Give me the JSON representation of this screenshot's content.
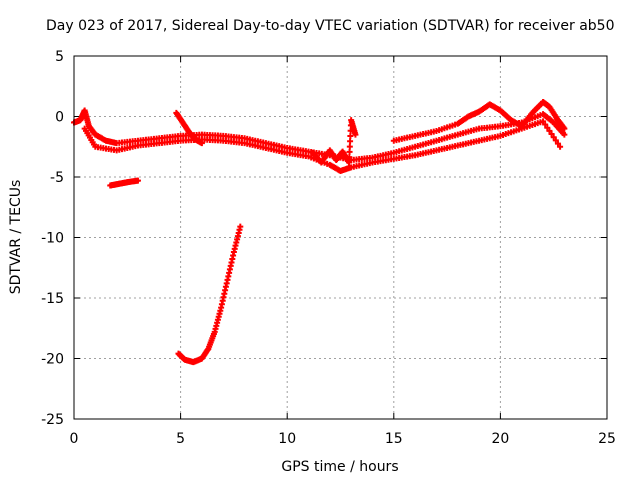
{
  "chart_data": {
    "type": "scatter",
    "title": "Day 023 of 2017, Sidereal Day-to-day VTEC variation (SDTVAR) for receiver ab50",
    "xlabel": "GPS time / hours",
    "ylabel": "SDTVAR / TECUs",
    "xlim": [
      0,
      25
    ],
    "ylim": [
      -25,
      5
    ],
    "xticks": [
      0,
      5,
      10,
      15,
      20,
      25
    ],
    "yticks": [
      5,
      0,
      -5,
      -10,
      -15,
      -20,
      -25
    ],
    "xtick_labels": [
      "0",
      "5",
      "10",
      "15",
      "20",
      "25"
    ],
    "ytick_labels": [
      "5",
      "0",
      "-5",
      "-10",
      "-15",
      "-20",
      "-25"
    ],
    "grid": true,
    "marker": "+",
    "series_color": "#ff0000",
    "series": [
      {
        "name": "upper-band-main-a",
        "points": [
          [
            0,
            -0.5
          ],
          [
            0.3,
            -0.3
          ],
          [
            0.5,
            0.5
          ],
          [
            0.7,
            -0.8
          ],
          [
            1.0,
            -1.5
          ],
          [
            1.5,
            -2.0
          ],
          [
            2.0,
            -2.2
          ],
          [
            3.0,
            -2.0
          ],
          [
            4.0,
            -1.8
          ],
          [
            5.0,
            -1.6
          ],
          [
            6.0,
            -1.5
          ],
          [
            7.0,
            -1.6
          ],
          [
            8.0,
            -1.8
          ],
          [
            9.0,
            -2.2
          ],
          [
            10.0,
            -2.6
          ],
          [
            11.0,
            -2.9
          ],
          [
            12.0,
            -3.2
          ],
          [
            13.0,
            -3.6
          ],
          [
            14.0,
            -3.4
          ],
          [
            15.0,
            -3.0
          ],
          [
            16.0,
            -2.5
          ],
          [
            17.0,
            -2.0
          ],
          [
            18.0,
            -1.5
          ],
          [
            19.0,
            -1.0
          ],
          [
            20.0,
            -0.8
          ],
          [
            21.0,
            -0.5
          ],
          [
            22.0,
            0.2
          ],
          [
            22.5,
            -0.5
          ],
          [
            23.0,
            -1.5
          ]
        ]
      },
      {
        "name": "upper-band-main-b",
        "points": [
          [
            0.5,
            -1.0
          ],
          [
            1.0,
            -2.5
          ],
          [
            2.0,
            -2.8
          ],
          [
            3.0,
            -2.4
          ],
          [
            4.0,
            -2.2
          ],
          [
            5.0,
            -2.0
          ],
          [
            6.0,
            -1.9
          ],
          [
            7.0,
            -2.0
          ],
          [
            8.0,
            -2.2
          ],
          [
            9.0,
            -2.6
          ],
          [
            10.0,
            -3.0
          ],
          [
            11.0,
            -3.3
          ],
          [
            12.0,
            -4.0
          ],
          [
            12.5,
            -4.5
          ],
          [
            13.0,
            -4.2
          ],
          [
            14.0,
            -3.8
          ],
          [
            15.0,
            -3.5
          ],
          [
            16.0,
            -3.2
          ],
          [
            17.0,
            -2.8
          ],
          [
            18.0,
            -2.4
          ],
          [
            19.0,
            -2.0
          ],
          [
            20.0,
            -1.6
          ],
          [
            21.0,
            -1.0
          ],
          [
            22.0,
            -0.4
          ],
          [
            22.8,
            -2.5
          ]
        ]
      },
      {
        "name": "upper-band-main-c",
        "points": [
          [
            15.0,
            -2.0
          ],
          [
            16.0,
            -1.6
          ],
          [
            17.0,
            -1.2
          ],
          [
            18.0,
            -0.6
          ],
          [
            18.5,
            0.0
          ],
          [
            19.0,
            0.4
          ],
          [
            19.5,
            1.0
          ],
          [
            20.0,
            0.5
          ],
          [
            20.5,
            -0.3
          ],
          [
            21.0,
            -0.8
          ],
          [
            21.5,
            0.3
          ],
          [
            22.0,
            1.2
          ],
          [
            22.3,
            0.8
          ],
          [
            22.7,
            -0.3
          ],
          [
            23.0,
            -1.0
          ]
        ]
      },
      {
        "name": "rising-arc-5h",
        "points": [
          [
            4.8,
            0.3
          ],
          [
            5.1,
            -0.5
          ],
          [
            5.4,
            -1.3
          ],
          [
            5.7,
            -1.9
          ],
          [
            6.0,
            -2.2
          ]
        ]
      },
      {
        "name": "mid-cluster-12h",
        "points": [
          [
            11.2,
            -3.0
          ],
          [
            11.6,
            -3.8
          ],
          [
            12.0,
            -2.8
          ],
          [
            12.3,
            -3.6
          ],
          [
            12.6,
            -2.9
          ],
          [
            12.9,
            -3.8
          ],
          [
            13.0,
            -0.3
          ],
          [
            13.2,
            -1.5
          ]
        ]
      },
      {
        "name": "short-segment-2h",
        "points": [
          [
            1.7,
            -5.7
          ],
          [
            2.0,
            -5.6
          ],
          [
            2.3,
            -5.5
          ],
          [
            2.6,
            -5.4
          ],
          [
            3.0,
            -5.3
          ]
        ]
      },
      {
        "name": "steep-curve",
        "points": [
          [
            4.9,
            -19.6
          ],
          [
            5.2,
            -20.1
          ],
          [
            5.6,
            -20.3
          ],
          [
            6.0,
            -20.0
          ],
          [
            6.3,
            -19.2
          ],
          [
            6.6,
            -17.8
          ],
          [
            6.9,
            -15.8
          ],
          [
            7.2,
            -13.5
          ],
          [
            7.5,
            -11.2
          ],
          [
            7.8,
            -9.1
          ]
        ]
      }
    ]
  }
}
